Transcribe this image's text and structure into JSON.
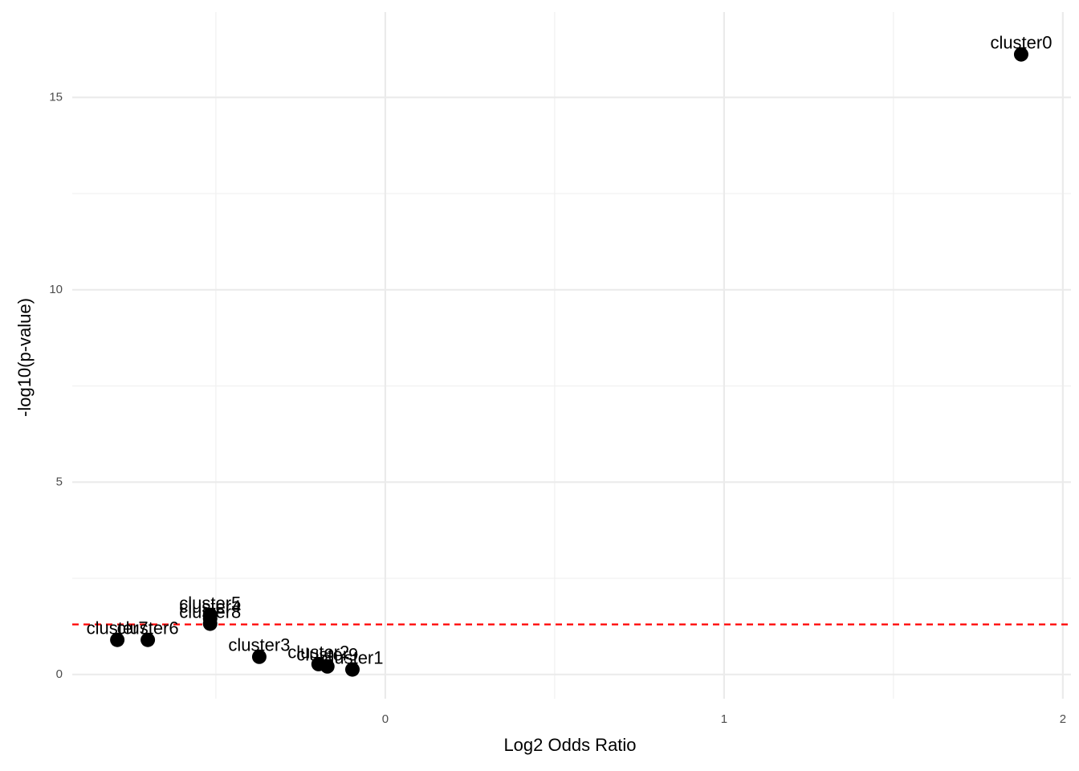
{
  "chart_data": {
    "type": "scatter",
    "xlabel": "Log2 Odds Ratio",
    "ylabel": "-log10(p-value)",
    "labels": [
      "cluster0",
      "cluster7",
      "cluster6",
      "cluster5",
      "cluster4",
      "cluster8",
      "cluster3",
      "cluster2",
      "cluster9",
      "cluster1"
    ],
    "x": [
      1.877,
      -0.791,
      -0.701,
      -0.517,
      -0.517,
      -0.517,
      -0.372,
      -0.197,
      -0.171,
      -0.097
    ],
    "values": [
      16.12,
      0.9,
      0.9,
      1.55,
      1.45,
      1.32,
      0.46,
      0.27,
      0.21,
      0.13
    ],
    "color": "#000000",
    "xlim": [
      -0.924,
      2.024
    ],
    "ylim": [
      -0.63,
      17.22
    ],
    "xticks": [
      0,
      1,
      2
    ],
    "yticks": [
      0,
      5,
      10,
      15
    ],
    "grid": true,
    "threshold": 1.301,
    "threshold_color": "#ff0000"
  }
}
